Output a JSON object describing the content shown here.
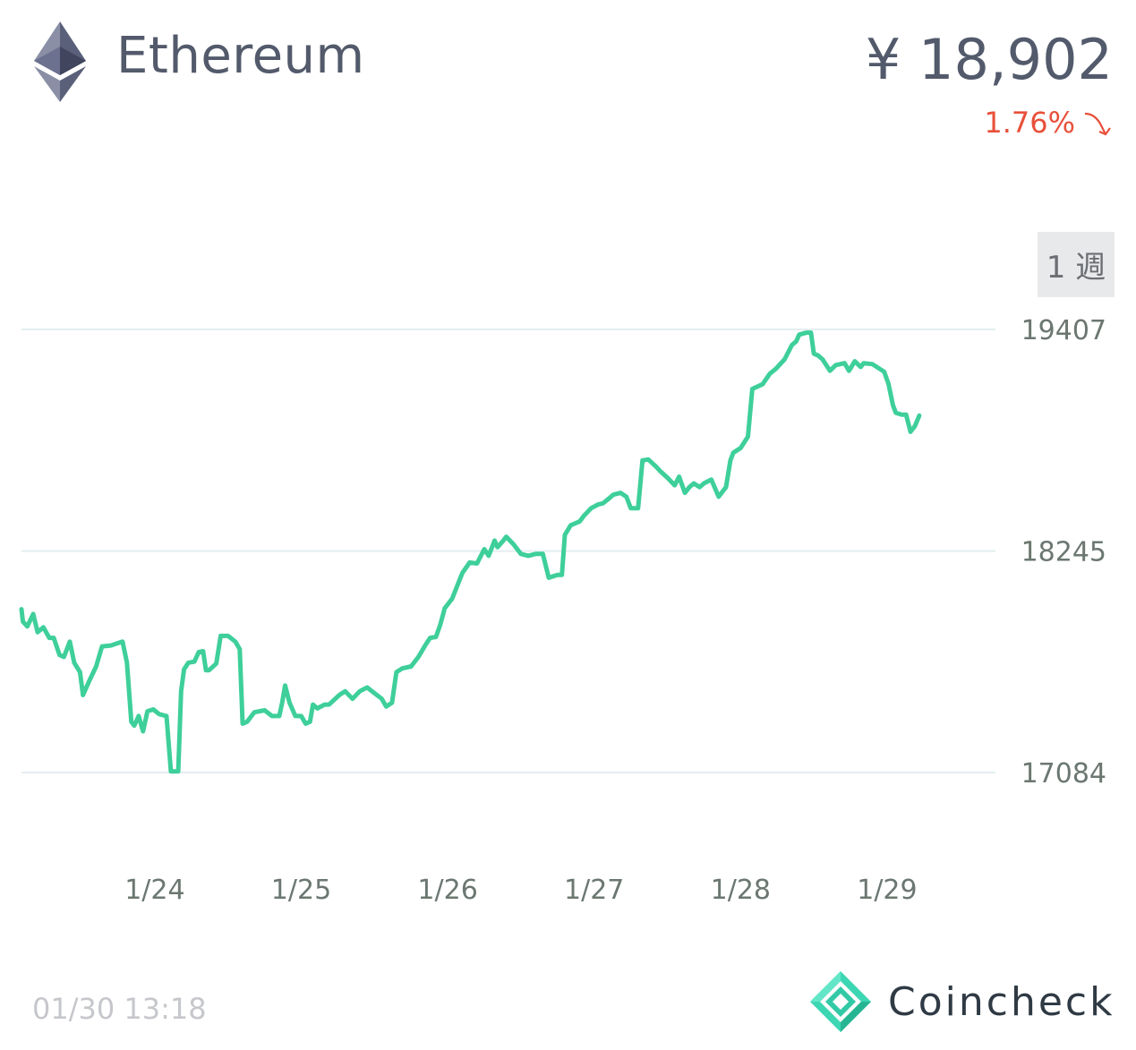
{
  "header": {
    "coin_name": "Ethereum",
    "price": "¥ 18,902",
    "change": "1.76%",
    "change_icon": "arrow-down-right-icon",
    "logo_icon": "ethereum-icon"
  },
  "range_button": {
    "label": "1 週"
  },
  "footer": {
    "timestamp": "01/30 13:18",
    "brand": "Coincheck",
    "brand_icon": "coincheck-logo-icon"
  },
  "colors": {
    "line": "#3ecf9a",
    "change_negative": "#e8503a",
    "grid": "#e4eef0",
    "text": "#525a6b",
    "axis_text": "#6b7770"
  },
  "chart_data": {
    "type": "line",
    "title": "",
    "xlabel": "",
    "ylabel": "",
    "x_ticks": [
      "1/24",
      "1/25",
      "1/26",
      "1/27",
      "1/28",
      "1/29"
    ],
    "y_ticks": [
      17084,
      18245,
      19407
    ],
    "ylim": [
      17084,
      19407
    ],
    "x_range_days": [
      23.09,
      29.74
    ],
    "grid": true,
    "series": [
      {
        "values": [
          [
            23.09,
            17940
          ],
          [
            23.1,
            17875
          ],
          [
            23.13,
            17850
          ],
          [
            23.17,
            17915
          ],
          [
            23.2,
            17820
          ],
          [
            23.24,
            17845
          ],
          [
            23.28,
            17790
          ],
          [
            23.31,
            17790
          ],
          [
            23.35,
            17700
          ],
          [
            23.38,
            17690
          ],
          [
            23.42,
            17770
          ],
          [
            23.45,
            17660
          ],
          [
            23.49,
            17610
          ],
          [
            23.51,
            17490
          ],
          [
            23.55,
            17560
          ],
          [
            23.6,
            17640
          ],
          [
            23.64,
            17745
          ],
          [
            23.7,
            17750
          ],
          [
            23.78,
            17770
          ],
          [
            23.81,
            17660
          ],
          [
            23.84,
            17350
          ],
          [
            23.86,
            17330
          ],
          [
            23.89,
            17380
          ],
          [
            23.92,
            17300
          ],
          [
            23.95,
            17405
          ],
          [
            23.99,
            17415
          ],
          [
            24.03,
            17390
          ],
          [
            24.08,
            17380
          ],
          [
            24.11,
            17090
          ],
          [
            24.16,
            17090
          ],
          [
            24.18,
            17510
          ],
          [
            24.2,
            17625
          ],
          [
            24.23,
            17660
          ],
          [
            24.27,
            17665
          ],
          [
            24.3,
            17715
          ],
          [
            24.33,
            17720
          ],
          [
            24.35,
            17620
          ],
          [
            24.37,
            17620
          ],
          [
            24.42,
            17655
          ],
          [
            24.45,
            17800
          ],
          [
            24.5,
            17800
          ],
          [
            24.55,
            17770
          ],
          [
            24.58,
            17730
          ],
          [
            24.6,
            17340
          ],
          [
            24.63,
            17350
          ],
          [
            24.68,
            17400
          ],
          [
            24.75,
            17410
          ],
          [
            24.8,
            17380
          ],
          [
            24.85,
            17380
          ],
          [
            24.87,
            17450
          ],
          [
            24.89,
            17540
          ],
          [
            24.92,
            17450
          ],
          [
            24.96,
            17380
          ],
          [
            25.0,
            17380
          ],
          [
            25.03,
            17340
          ],
          [
            25.06,
            17350
          ],
          [
            25.08,
            17440
          ],
          [
            25.11,
            17420
          ],
          [
            25.16,
            17440
          ],
          [
            25.19,
            17440
          ],
          [
            25.26,
            17490
          ],
          [
            25.3,
            17510
          ],
          [
            25.35,
            17470
          ],
          [
            25.4,
            17510
          ],
          [
            25.45,
            17530
          ],
          [
            25.5,
            17500
          ],
          [
            25.55,
            17470
          ],
          [
            25.58,
            17430
          ],
          [
            25.62,
            17450
          ],
          [
            25.65,
            17610
          ],
          [
            25.69,
            17630
          ],
          [
            25.75,
            17640
          ],
          [
            25.8,
            17690
          ],
          [
            25.85,
            17755
          ],
          [
            25.88,
            17790
          ],
          [
            25.92,
            17795
          ],
          [
            25.95,
            17860
          ],
          [
            25.98,
            17945
          ],
          [
            26.03,
            17995
          ],
          [
            26.1,
            18130
          ],
          [
            26.15,
            18185
          ],
          [
            26.2,
            18180
          ],
          [
            26.25,
            18255
          ],
          [
            26.28,
            18220
          ],
          [
            26.32,
            18300
          ],
          [
            26.34,
            18265
          ],
          [
            26.38,
            18300
          ],
          [
            26.4,
            18320
          ],
          [
            26.45,
            18280
          ],
          [
            26.5,
            18230
          ],
          [
            26.55,
            18220
          ],
          [
            26.6,
            18230
          ],
          [
            26.65,
            18230
          ],
          [
            26.69,
            18105
          ],
          [
            26.75,
            18120
          ],
          [
            26.78,
            18120
          ],
          [
            26.8,
            18330
          ],
          [
            26.84,
            18380
          ],
          [
            26.9,
            18400
          ],
          [
            26.93,
            18430
          ],
          [
            26.98,
            18470
          ],
          [
            27.03,
            18490
          ],
          [
            27.06,
            18495
          ],
          [
            27.1,
            18520
          ],
          [
            27.13,
            18540
          ],
          [
            27.18,
            18550
          ],
          [
            27.22,
            18530
          ],
          [
            27.25,
            18470
          ],
          [
            27.3,
            18470
          ],
          [
            27.33,
            18720
          ],
          [
            27.37,
            18725
          ],
          [
            27.42,
            18690
          ],
          [
            27.45,
            18665
          ],
          [
            27.5,
            18630
          ],
          [
            27.55,
            18590
          ],
          [
            27.58,
            18635
          ],
          [
            27.62,
            18550
          ],
          [
            27.65,
            18580
          ],
          [
            27.68,
            18600
          ],
          [
            27.72,
            18580
          ],
          [
            27.75,
            18600
          ],
          [
            27.8,
            18620
          ],
          [
            27.85,
            18530
          ],
          [
            27.9,
            18580
          ],
          [
            27.93,
            18720
          ],
          [
            27.95,
            18760
          ],
          [
            28.0,
            18785
          ],
          [
            28.05,
            18845
          ],
          [
            28.08,
            19095
          ],
          [
            28.15,
            19120
          ],
          [
            28.2,
            19175
          ],
          [
            28.24,
            19200
          ],
          [
            28.3,
            19250
          ],
          [
            28.35,
            19325
          ],
          [
            28.38,
            19345
          ],
          [
            28.4,
            19380
          ],
          [
            28.45,
            19390
          ],
          [
            28.48,
            19390
          ],
          [
            28.5,
            19280
          ],
          [
            28.53,
            19270
          ],
          [
            28.56,
            19250
          ],
          [
            28.61,
            19190
          ],
          [
            28.65,
            19220
          ],
          [
            28.71,
            19230
          ],
          [
            28.74,
            19190
          ],
          [
            28.78,
            19240
          ],
          [
            28.82,
            19210
          ],
          [
            28.84,
            19230
          ],
          [
            28.9,
            19225
          ],
          [
            28.98,
            19185
          ],
          [
            29.01,
            19120
          ],
          [
            29.04,
            19010
          ],
          [
            29.06,
            18970
          ],
          [
            29.1,
            18960
          ],
          [
            29.13,
            18960
          ],
          [
            29.16,
            18870
          ],
          [
            29.19,
            18900
          ],
          [
            29.22,
            18955
          ]
        ]
      }
    ]
  }
}
